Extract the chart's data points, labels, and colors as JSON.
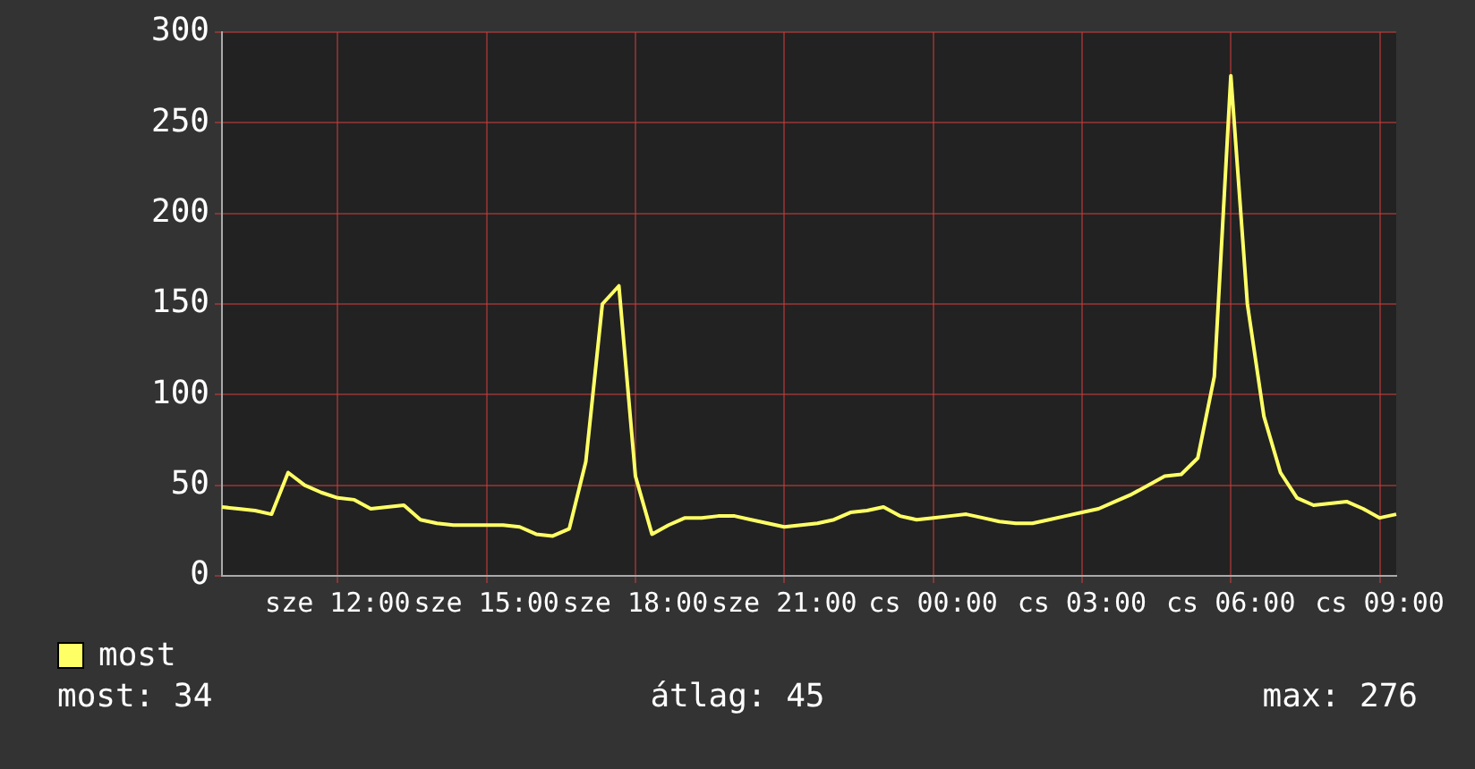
{
  "chart_data": {
    "type": "line",
    "categories": [
      null,
      null,
      null,
      null,
      null,
      null,
      null,
      "sze 12:00",
      null,
      null,
      null,
      null,
      null,
      null,
      null,
      null,
      "sze 15:00",
      null,
      null,
      null,
      null,
      null,
      null,
      null,
      null,
      "sze 18:00",
      null,
      null,
      null,
      null,
      null,
      null,
      null,
      null,
      "sze 21:00",
      null,
      null,
      null,
      null,
      null,
      null,
      null,
      null,
      "cs 00:00",
      null,
      null,
      null,
      null,
      null,
      null,
      null,
      null,
      "cs 03:00",
      null,
      null,
      null,
      null,
      null,
      null,
      null,
      null,
      "cs 06:00",
      null,
      null,
      null,
      null,
      null,
      null,
      null,
      null,
      "cs 09:00",
      null
    ],
    "series": [
      {
        "name": "most",
        "color": "#ffff66",
        "values": [
          38,
          37,
          36,
          34,
          57,
          50,
          46,
          43,
          42,
          37,
          38,
          39,
          31,
          29,
          28,
          28,
          28,
          28,
          27,
          23,
          22,
          26,
          63,
          150,
          160,
          55,
          23,
          28,
          32,
          32,
          33,
          33,
          31,
          29,
          27,
          28,
          29,
          31,
          35,
          36,
          38,
          33,
          31,
          32,
          33,
          34,
          32,
          30,
          29,
          29,
          31,
          33,
          35,
          37,
          41,
          45,
          50,
          55,
          56,
          65,
          110,
          276,
          150,
          88,
          57,
          43,
          39,
          40,
          41,
          37,
          32,
          34
        ]
      }
    ],
    "ylim": [
      0,
      300
    ],
    "yticks": [
      0,
      50,
      100,
      150,
      200,
      250,
      300
    ],
    "grid": true,
    "legend": "bottom left",
    "marker": "none",
    "line_style": "solid",
    "annotations": [
      "most: 34",
      "átlag: 45",
      "max: 276"
    ]
  }
}
